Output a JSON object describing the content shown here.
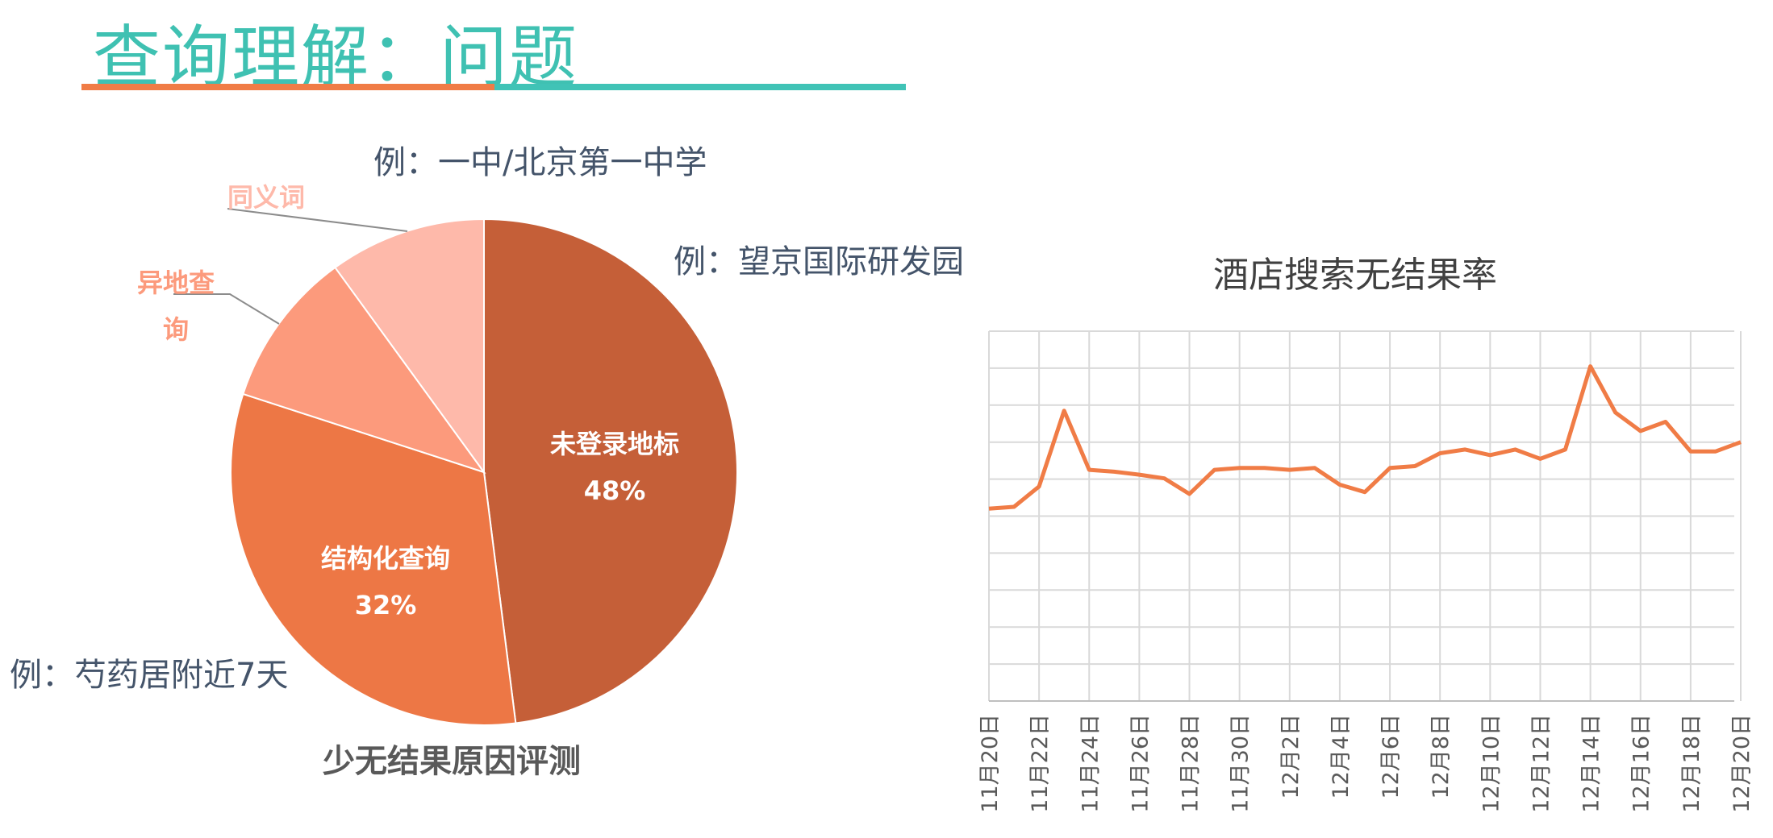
{
  "page": {
    "title": "查询理解：问题",
    "colors": {
      "title": "#3fc1b2",
      "underline_left": "#f07c46",
      "underline_right": "#40c3b6"
    }
  },
  "chart_data": [
    {
      "type": "pie",
      "title": "少无结果原因评测",
      "slices": [
        {
          "label": "未登录地标",
          "value": 48,
          "value_label": "48%",
          "color": "#c55f38"
        },
        {
          "label": "结构化查询",
          "value": 32,
          "value_label": "32%",
          "color": "#ed7745"
        },
        {
          "label": "异地查询",
          "label_lines": [
            "异地查",
            "询"
          ],
          "value": 10,
          "color": "#fc9a7c"
        },
        {
          "label": "同义词",
          "label_lines": [
            "同义词"
          ],
          "value": 10,
          "color": "#feb9aa"
        }
      ],
      "annotations": [
        "例：一中/北京第一中学",
        "例：望京国际研发园",
        "例：芍药居附近7天"
      ]
    },
    {
      "type": "line",
      "title": "酒店搜索无结果率",
      "x": [
        "11月20日",
        "11月21日",
        "11月22日",
        "11月23日",
        "11月24日",
        "11月25日",
        "11月26日",
        "11月27日",
        "11月28日",
        "11月29日",
        "11月30日",
        "12月1日",
        "12月2日",
        "12月3日",
        "12月4日",
        "12月5日",
        "12月6日",
        "12月7日",
        "12月8日",
        "12月9日",
        "12月10日",
        "12月11日",
        "12月12日",
        "12月13日",
        "12月14日",
        "12月15日",
        "12月16日",
        "12月17日",
        "12月18日",
        "12月19日",
        "12月20日"
      ],
      "tick_labels": [
        "11月20日",
        "11月22日",
        "11月24日",
        "11月26日",
        "11月28日",
        "11月30日",
        "12月2日",
        "12月4日",
        "12月6日",
        "12月8日",
        "12月10日",
        "12月12日",
        "12月14日",
        "12月16日",
        "12月18日",
        "12月20日"
      ],
      "series": [
        {
          "values": [
            5.2,
            5.25,
            5.8,
            7.85,
            6.25,
            6.2,
            6.12,
            6.02,
            5.6,
            6.25,
            6.3,
            6.3,
            6.25,
            6.3,
            5.85,
            5.65,
            6.3,
            6.35,
            6.7,
            6.8,
            6.65,
            6.8,
            6.55,
            6.8,
            9.05,
            7.8,
            7.3,
            7.55,
            6.75,
            6.75,
            7.0
          ],
          "color": "#f07c46"
        }
      ],
      "ylim": [
        0,
        10
      ],
      "grid": true,
      "xlabel": "",
      "ylabel": ""
    }
  ]
}
